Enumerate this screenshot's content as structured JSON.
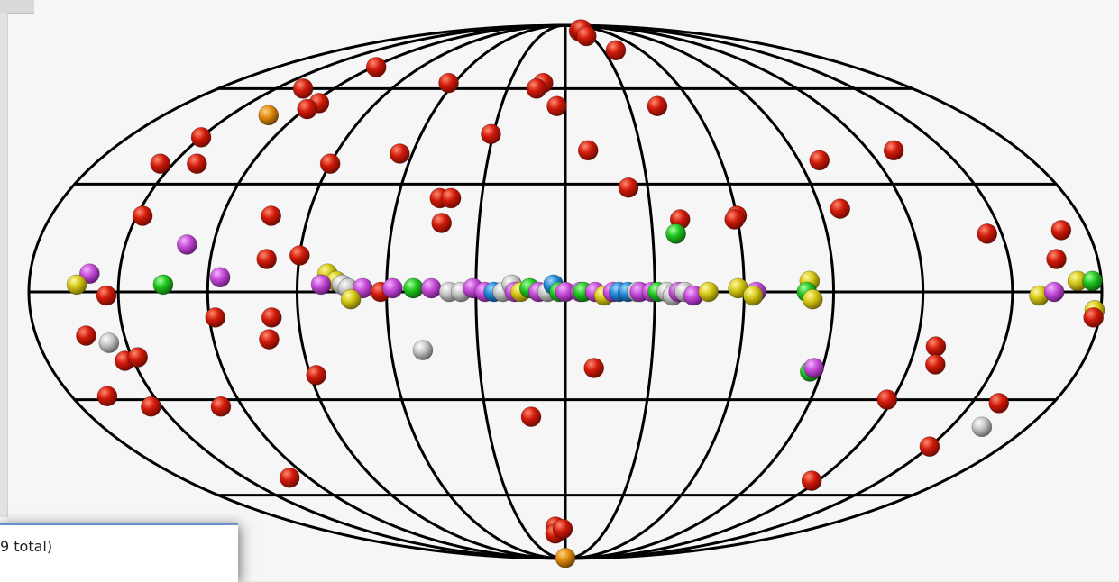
{
  "projection": "mollweide",
  "grid": {
    "meridian_step_deg": 30,
    "parallel_step_deg": 30,
    "line_color": "#000000"
  },
  "background_color": "#f6f6f6",
  "marker_colors": {
    "red": "#d01a0a",
    "green": "#1ec41e",
    "magenta": "#c54ad6",
    "yellow": "#d4c616",
    "gray": "#c4c4c4",
    "blue": "#1f85d4",
    "orange": "#e08a0a"
  },
  "sources": [
    {
      "lon": 22,
      "lat": 85,
      "color": "red"
    },
    {
      "lon": 27,
      "lat": 86,
      "color": "red"
    },
    {
      "lon": 31,
      "lat": 86,
      "color": "red"
    },
    {
      "lon": 25,
      "lat": 82,
      "color": "red"
    },
    {
      "lon": 40,
      "lat": 75,
      "color": "red"
    },
    {
      "lon": -118,
      "lat": 68,
      "color": "red"
    },
    {
      "lon": -63,
      "lat": 62,
      "color": "red"
    },
    {
      "lon": -12,
      "lat": 62,
      "color": "red"
    },
    {
      "lon": -15,
      "lat": 60,
      "color": "red"
    },
    {
      "lon": -4,
      "lat": 54,
      "color": "red"
    },
    {
      "lon": 43,
      "lat": 54,
      "color": "red"
    },
    {
      "lon": -136,
      "lat": 60,
      "color": "red"
    },
    {
      "lon": -117,
      "lat": 55,
      "color": "red"
    },
    {
      "lon": -119,
      "lat": 53,
      "color": "red"
    },
    {
      "lon": -133,
      "lat": 51,
      "color": "orange"
    },
    {
      "lon": -150,
      "lat": 44,
      "color": "red"
    },
    {
      "lon": -155,
      "lat": 36,
      "color": "red"
    },
    {
      "lon": -141,
      "lat": 36,
      "color": "red"
    },
    {
      "lon": -65,
      "lat": 39,
      "color": "red"
    },
    {
      "lon": -31,
      "lat": 45,
      "color": "red"
    },
    {
      "lon": -90,
      "lat": 36,
      "color": "red"
    },
    {
      "lon": 9,
      "lat": 40,
      "color": "red"
    },
    {
      "lon": 130,
      "lat": 40,
      "color": "red"
    },
    {
      "lon": 98,
      "lat": 37,
      "color": "red"
    },
    {
      "lon": -45,
      "lat": 26,
      "color": "red"
    },
    {
      "lon": -41,
      "lat": 26,
      "color": "red"
    },
    {
      "lon": 23,
      "lat": 29,
      "color": "red"
    },
    {
      "lon": -43,
      "lat": 19,
      "color": "red"
    },
    {
      "lon": -148,
      "lat": 21,
      "color": "red"
    },
    {
      "lon": -103,
      "lat": 21,
      "color": "red"
    },
    {
      "lon": 40,
      "lat": 20,
      "color": "red"
    },
    {
      "lon": 60,
      "lat": 21,
      "color": "red"
    },
    {
      "lon": 59,
      "lat": 20,
      "color": "red"
    },
    {
      "lon": 97,
      "lat": 23,
      "color": "red"
    },
    {
      "lon": 145,
      "lat": 16,
      "color": "red"
    },
    {
      "lon": 171,
      "lat": 17,
      "color": "red"
    },
    {
      "lon": 38,
      "lat": 16,
      "color": "green"
    },
    {
      "lon": -129,
      "lat": 13,
      "color": "magenta"
    },
    {
      "lon": -101,
      "lat": 9,
      "color": "red"
    },
    {
      "lon": -90,
      "lat": 10,
      "color": "red"
    },
    {
      "lon": 166,
      "lat": 9,
      "color": "red"
    },
    {
      "lon": -160,
      "lat": 5,
      "color": "magenta"
    },
    {
      "lon": -164,
      "lat": 2,
      "color": "yellow"
    },
    {
      "lon": -135,
      "lat": 2,
      "color": "green"
    },
    {
      "lon": -116,
      "lat": 4,
      "color": "magenta"
    },
    {
      "lon": -80,
      "lat": 5,
      "color": "yellow"
    },
    {
      "lon": -77,
      "lat": 3,
      "color": "yellow"
    },
    {
      "lon": -82,
      "lat": 2,
      "color": "magenta"
    },
    {
      "lon": -75,
      "lat": 2,
      "color": "gray"
    },
    {
      "lon": -73,
      "lat": 1,
      "color": "gray"
    },
    {
      "lon": -68,
      "lat": 1,
      "color": "magenta"
    },
    {
      "lon": -62,
      "lat": 0,
      "color": "red"
    },
    {
      "lon": -58,
      "lat": 1,
      "color": "magenta"
    },
    {
      "lon": -51,
      "lat": 1,
      "color": "green"
    },
    {
      "lon": -45,
      "lat": 1,
      "color": "magenta"
    },
    {
      "lon": -39,
      "lat": 0,
      "color": "gray"
    },
    {
      "lon": -35,
      "lat": 0,
      "color": "gray"
    },
    {
      "lon": -31,
      "lat": 1,
      "color": "magenta"
    },
    {
      "lon": -27,
      "lat": 0,
      "color": "magenta"
    },
    {
      "lon": -24,
      "lat": 0,
      "color": "blue"
    },
    {
      "lon": -21,
      "lat": 0,
      "color": "gray"
    },
    {
      "lon": -18,
      "lat": 2,
      "color": "gray"
    },
    {
      "lon": -17,
      "lat": 0,
      "color": "magenta"
    },
    {
      "lon": -15,
      "lat": 0,
      "color": "yellow"
    },
    {
      "lon": -12,
      "lat": 1,
      "color": "green"
    },
    {
      "lon": -9,
      "lat": 0,
      "color": "magenta"
    },
    {
      "lon": -6,
      "lat": 0,
      "color": "gray"
    },
    {
      "lon": -4,
      "lat": 2,
      "color": "blue"
    },
    {
      "lon": -2,
      "lat": 0,
      "color": "green"
    },
    {
      "lon": 0,
      "lat": 0,
      "color": "magenta"
    },
    {
      "lon": 5,
      "lat": 0,
      "color": "magenta"
    },
    {
      "lon": 6,
      "lat": 0,
      "color": "green"
    },
    {
      "lon": 10,
      "lat": 0,
      "color": "magenta"
    },
    {
      "lon": 13,
      "lat": -1,
      "color": "yellow"
    },
    {
      "lon": 16,
      "lat": 0,
      "color": "magenta"
    },
    {
      "lon": 18,
      "lat": 0,
      "color": "blue"
    },
    {
      "lon": 21,
      "lat": 0,
      "color": "blue"
    },
    {
      "lon": 24,
      "lat": 0,
      "color": "gray"
    },
    {
      "lon": 25,
      "lat": 0,
      "color": "magenta"
    },
    {
      "lon": 29,
      "lat": 0,
      "color": "magenta"
    },
    {
      "lon": 31,
      "lat": 0,
      "color": "green"
    },
    {
      "lon": 34,
      "lat": 0,
      "color": "gray"
    },
    {
      "lon": 36,
      "lat": -1,
      "color": "gray"
    },
    {
      "lon": 38,
      "lat": 0,
      "color": "magenta"
    },
    {
      "lon": 40,
      "lat": 0,
      "color": "gray"
    },
    {
      "lon": 43,
      "lat": -1,
      "color": "magenta"
    },
    {
      "lon": 48,
      "lat": 0,
      "color": "yellow"
    },
    {
      "lon": 58,
      "lat": 1,
      "color": "yellow"
    },
    {
      "lon": 64,
      "lat": 0,
      "color": "magenta"
    },
    {
      "lon": 63,
      "lat": -1,
      "color": "yellow"
    },
    {
      "lon": 82,
      "lat": 3,
      "color": "yellow"
    },
    {
      "lon": 81,
      "lat": 0,
      "color": "green"
    },
    {
      "lon": 83,
      "lat": -2,
      "color": "yellow"
    },
    {
      "lon": -72,
      "lat": -2,
      "color": "yellow"
    },
    {
      "lon": -154,
      "lat": -1,
      "color": "red"
    },
    {
      "lon": -118,
      "lat": -7,
      "color": "red"
    },
    {
      "lon": -99,
      "lat": -7,
      "color": "red"
    },
    {
      "lon": 159,
      "lat": -1,
      "color": "yellow"
    },
    {
      "lon": 164,
      "lat": 0,
      "color": "magenta"
    },
    {
      "lon": 172,
      "lat": 3,
      "color": "yellow"
    },
    {
      "lon": 177,
      "lat": 3,
      "color": "green"
    },
    {
      "lon": 178,
      "lat": -5,
      "color": "yellow"
    },
    {
      "lon": 178,
      "lat": -7,
      "color": "red"
    },
    {
      "lon": -163,
      "lat": -12,
      "color": "red"
    },
    {
      "lon": -156,
      "lat": -14,
      "color": "gray"
    },
    {
      "lon": -101,
      "lat": -13,
      "color": "red"
    },
    {
      "lon": -49,
      "lat": -16,
      "color": "gray"
    },
    {
      "lon": -153,
      "lat": -19,
      "color": "red"
    },
    {
      "lon": -148,
      "lat": -18,
      "color": "red"
    },
    {
      "lon": 127,
      "lat": -15,
      "color": "red"
    },
    {
      "lon": 129,
      "lat": -20,
      "color": "red"
    },
    {
      "lon": 86,
      "lat": -22,
      "color": "green"
    },
    {
      "lon": 87,
      "lat": -21,
      "color": "magenta"
    },
    {
      "lon": 10,
      "lat": -21,
      "color": "red"
    },
    {
      "lon": -88,
      "lat": -23,
      "color": "red"
    },
    {
      "lon": -167,
      "lat": -29,
      "color": "red"
    },
    {
      "lon": -154,
      "lat": -32,
      "color": "red"
    },
    {
      "lon": -128,
      "lat": -32,
      "color": "red"
    },
    {
      "lon": 118,
      "lat": -30,
      "color": "red"
    },
    {
      "lon": 160,
      "lat": -31,
      "color": "red"
    },
    {
      "lon": 162,
      "lat": -38,
      "color": "gray"
    },
    {
      "lon": -13,
      "lat": -35,
      "color": "red"
    },
    {
      "lon": 150,
      "lat": -44,
      "color": "red"
    },
    {
      "lon": -129,
      "lat": -54,
      "color": "red"
    },
    {
      "lon": 117,
      "lat": -55,
      "color": "red"
    },
    {
      "lon": -7,
      "lat": -72,
      "color": "red"
    },
    {
      "lon": -8,
      "lat": -75,
      "color": "red"
    },
    {
      "lon": -2,
      "lat": -73,
      "color": "red"
    },
    {
      "lon": 0,
      "lat": -89,
      "color": "orange"
    }
  ],
  "panel": {
    "count_text": "9 total)"
  }
}
